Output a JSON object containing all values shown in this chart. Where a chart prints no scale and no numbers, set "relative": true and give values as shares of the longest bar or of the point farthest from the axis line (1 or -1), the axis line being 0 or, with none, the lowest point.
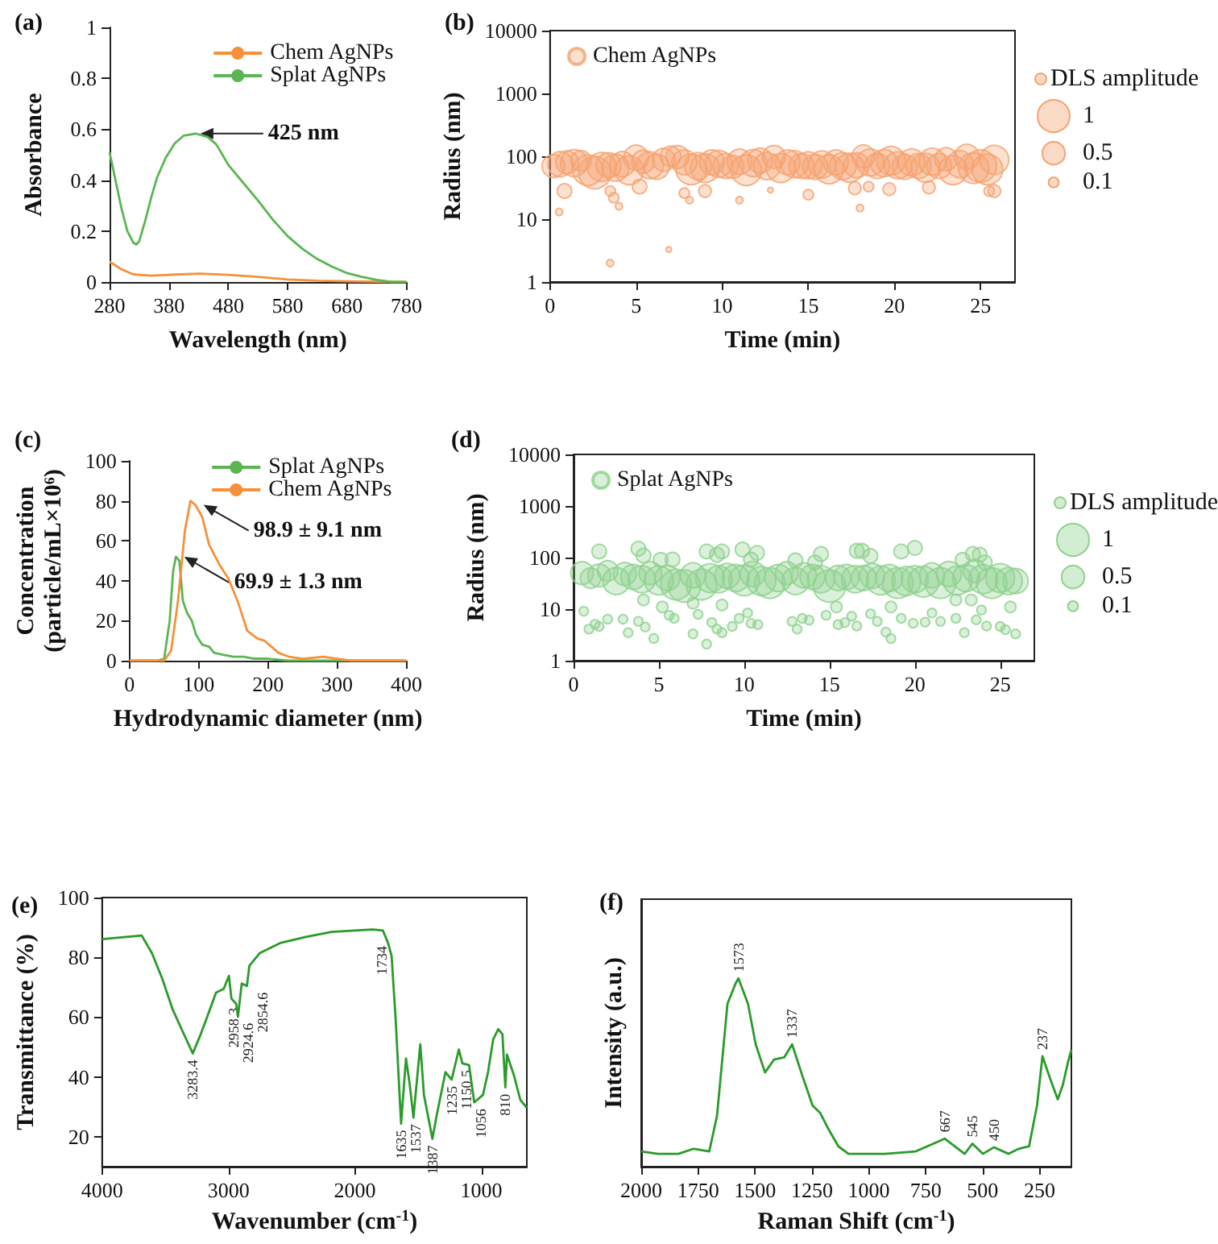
{
  "chart_data": [
    {
      "type": "line",
      "title": "(a)",
      "xlabel": "Wavelength (nm)",
      "ylabel": "Absorbance",
      "xlim": [
        280,
        780
      ],
      "xticks": [
        280,
        380,
        480,
        580,
        680,
        780
      ],
      "ylim": [
        0,
        1
      ],
      "yticks": [
        0,
        0.2,
        0.4,
        0.6,
        0.8,
        1
      ],
      "legend": "top right",
      "annotations": [
        {
          "text": "425 nm",
          "x": 425,
          "y": 0.583
        }
      ],
      "series": [
        {
          "name": "Chem AgNPs",
          "color": "#f7903a",
          "x": [
            280,
            300,
            320,
            350,
            400,
            430,
            480,
            530,
            580,
            630,
            680,
            730,
            780
          ],
          "values": [
            0.08,
            0.05,
            0.03,
            0.025,
            0.03,
            0.033,
            0.028,
            0.02,
            0.01,
            0.005,
            0.003,
            0.001,
            0
          ]
        },
        {
          "name": "Splat AgNPs",
          "color": "#5ab552",
          "x": [
            280,
            290,
            300,
            310,
            320,
            325,
            330,
            340,
            350,
            360,
            375,
            390,
            405,
            425,
            445,
            460,
            480,
            505,
            530,
            555,
            580,
            605,
            630,
            655,
            680,
            705,
            730,
            755,
            780
          ],
          "values": [
            0.51,
            0.4,
            0.29,
            0.2,
            0.155,
            0.147,
            0.16,
            0.24,
            0.33,
            0.41,
            0.49,
            0.545,
            0.575,
            0.583,
            0.57,
            0.54,
            0.46,
            0.39,
            0.32,
            0.245,
            0.18,
            0.13,
            0.09,
            0.06,
            0.035,
            0.02,
            0.008,
            0,
            0
          ]
        }
      ]
    },
    {
      "type": "bubble",
      "title": "(b)",
      "xlabel": "Time (min)",
      "ylabel": "Radius (nm)",
      "log": true,
      "xlim": [
        0,
        27
      ],
      "xticks": [
        0,
        5,
        10,
        15,
        20,
        25
      ],
      "ylim": [
        1,
        10000
      ],
      "yticks": [
        1,
        10,
        100,
        1000,
        10000
      ],
      "legend": "top left",
      "legend_title": "DLS amplitude",
      "size_legend": [
        1,
        0.5,
        0.1
      ],
      "series": [
        {
          "name": "Chem AgNPs",
          "color": "#f5a370",
          "x": [
            0.2,
            0.6,
            1.0,
            1.4,
            1.8,
            2.2,
            2.6,
            3.0,
            3.4,
            3.8,
            4.2,
            4.6,
            5.0,
            5.4,
            5.8,
            6.2,
            6.6,
            7.0,
            7.4,
            7.8,
            8.2,
            8.6,
            9.0,
            9.4,
            9.8,
            10.2,
            10.6,
            11.0,
            11.4,
            11.8,
            12.2,
            12.6,
            13.0,
            13.4,
            13.8,
            14.2,
            14.6,
            15.0,
            15.4,
            15.8,
            16.2,
            16.6,
            17.0,
            17.4,
            17.8,
            18.2,
            18.6,
            19.0,
            19.4,
            19.8,
            20.2,
            20.6,
            21.0,
            21.4,
            21.8,
            22.2,
            22.6,
            23.0,
            23.4,
            23.8,
            24.2,
            24.6,
            25.0,
            25.4,
            25.8,
            0.84,
            0.53,
            3.49,
            3.5,
            3.7,
            4.0,
            5.2,
            6.9,
            7.8,
            8.1,
            9.0,
            11.0,
            12.8,
            15.0,
            17.7,
            18.0,
            18.5,
            19.7,
            22.0,
            25.5,
            25.8
          ],
          "values": [
            70,
            75,
            80,
            78,
            85,
            60,
            55,
            68,
            72,
            66,
            75,
            60,
            95,
            82,
            72,
            68,
            88,
            100,
            98,
            80,
            62,
            70,
            65,
            80,
            76,
            70,
            68,
            82,
            60,
            78,
            85,
            70,
            98,
            65,
            80,
            75,
            70,
            72,
            68,
            74,
            62,
            80,
            70,
            66,
            72,
            100,
            80,
            70,
            78,
            85,
            72,
            68,
            80,
            70,
            66,
            82,
            70,
            90,
            60,
            75,
            98,
            65,
            70,
            62,
            88,
            28,
            13,
            2,
            28,
            22,
            16,
            33,
            3.3,
            26,
            20,
            28,
            20,
            29,
            24.5,
            31,
            15,
            33,
            30,
            32,
            28,
            28
          ],
          "sizes": [
            0.5,
            0.6,
            0.5,
            0.7,
            0.4,
            0.9,
            1,
            0.8,
            0.6,
            0.7,
            0.6,
            0.8,
            0.6,
            0.5,
            0.7,
            0.6,
            0.5,
            0.4,
            0.5,
            0.6,
            0.9,
            0.7,
            0.8,
            0.6,
            0.7,
            0.6,
            0.5,
            0.6,
            0.9,
            0.7,
            0.6,
            0.7,
            0.5,
            0.8,
            0.6,
            0.7,
            0.6,
            0.7,
            0.6,
            0.7,
            0.8,
            0.6,
            0.7,
            0.8,
            0.6,
            0.5,
            0.7,
            0.6,
            0.7,
            0.8,
            0.7,
            0.6,
            0.7,
            0.6,
            0.8,
            0.7,
            0.6,
            0.5,
            0.8,
            0.7,
            0.6,
            0.9,
            1,
            0.9,
            0.8,
            0.2,
            0.05,
            0.05,
            0.1,
            0.1,
            0.05,
            0.2,
            0.03,
            0.1,
            0.05,
            0.15,
            0.05,
            0.03,
            0.1,
            0.15,
            0.05,
            0.1,
            0.15,
            0.15,
            0.1,
            0.15
          ]
        }
      ]
    },
    {
      "type": "line",
      "title": "(c)",
      "xlabel": "Hydrodynamic diameter (nm)",
      "ylabel": "Concentration\n(particle/mL×10⁶)",
      "xlim": [
        0,
        400
      ],
      "xticks": [
        0,
        100,
        200,
        300,
        400
      ],
      "ylim": [
        0,
        100
      ],
      "yticks": [
        0,
        20,
        40,
        60,
        80,
        100
      ],
      "legend": "top right",
      "annotations": [
        {
          "text": "98.9 ± 9.1 nm",
          "x": 100,
          "y": 78
        },
        {
          "text": "69.9 ± 1.3 nm",
          "x": 72,
          "y": 52
        }
      ],
      "series": [
        {
          "name": "Splat AgNPs",
          "color": "#5ab552",
          "x": [
            0,
            40,
            50,
            58,
            63,
            67,
            72,
            77,
            83,
            90,
            96,
            105,
            115,
            122,
            135,
            150,
            165,
            180,
            200,
            230,
            260,
            300,
            400
          ],
          "values": [
            0,
            0,
            1,
            20,
            45,
            52,
            50,
            30,
            24,
            20,
            13,
            8,
            7,
            4,
            3,
            2,
            2,
            1,
            1,
            0,
            0,
            0,
            0
          ]
        },
        {
          "name": "Chem AgNPs",
          "color": "#f7903a",
          "x": [
            0,
            50,
            60,
            70,
            80,
            88,
            95,
            105,
            115,
            130,
            143,
            157,
            170,
            185,
            195,
            205,
            215,
            230,
            250,
            280,
            300,
            320,
            350,
            400
          ],
          "values": [
            0,
            0,
            5,
            30,
            65,
            80,
            78,
            72,
            58,
            48,
            41,
            29,
            15,
            11,
            10,
            7,
            4,
            2,
            1,
            2,
            1,
            0,
            0,
            0
          ]
        }
      ]
    },
    {
      "type": "bubble",
      "title": "(d)",
      "xlabel": "Time (min)",
      "ylabel": "Radius (nm)",
      "log": true,
      "xlim": [
        0,
        27
      ],
      "xticks": [
        0,
        5,
        10,
        15,
        20,
        25
      ],
      "ylim": [
        1,
        10000
      ],
      "yticks": [
        1,
        10,
        100,
        1000,
        10000
      ],
      "legend": "top left",
      "legend_title": "DLS amplitude",
      "size_legend": [
        1,
        0.5,
        0.1
      ],
      "series": [
        {
          "name": "Splat AgNPs",
          "color": "#8fd18f",
          "x": [
            0.5,
            1.0,
            1.5,
            2.0,
            2.5,
            3.0,
            3.5,
            4.0,
            4.5,
            5.0,
            5.5,
            6.0,
            6.5,
            7.0,
            7.5,
            8.0,
            8.5,
            9.0,
            9.5,
            10.0,
            10.5,
            11.0,
            11.5,
            12.0,
            12.5,
            13.0,
            13.5,
            14.0,
            14.5,
            15.0,
            15.5,
            16.0,
            16.5,
            17.0,
            17.5,
            18.0,
            18.5,
            19.0,
            19.5,
            20.0,
            20.5,
            21.0,
            21.5,
            22.0,
            22.5,
            23.0,
            23.5,
            24.0,
            24.5,
            25.0,
            25.5,
            25.9,
            1.5,
            3.8,
            4.1,
            5.1,
            5.8,
            7.8,
            8.4,
            8.7,
            9.9,
            10.75,
            10.4,
            13.0,
            14.5,
            14.15,
            16.6,
            16.9,
            17.4,
            19.2,
            20.0,
            22.8,
            23.4,
            23.8,
            24.1,
            0.6,
            0.9,
            1.26,
            1.5,
            2.0,
            2.9,
            3.2,
            3.8,
            4.1,
            4.2,
            4.7,
            5.2,
            5.6,
            5.9,
            7.0,
            7.0,
            7.3,
            7.8,
            8.1,
            8.4,
            8.7,
            8.7,
            9.3,
            9.7,
            10.2,
            10.4,
            10.8,
            12.8,
            13.1,
            13.4,
            13.8,
            14.8,
            15.4,
            15.5,
            15.9,
            16.3,
            16.6,
            17.4,
            17.8,
            18.3,
            18.6,
            18.6,
            19.2,
            19.9,
            20.6,
            21.0,
            21.5,
            22.4,
            22.4,
            22.9,
            23.3,
            23.6,
            23.9,
            24.2,
            25.0,
            25.3,
            25.6,
            25.9
          ],
          "values": [
            50,
            40,
            45,
            55,
            35,
            48,
            42,
            38,
            50,
            36,
            40,
            30,
            28,
            45,
            30,
            40,
            38,
            44,
            40,
            36,
            48,
            35,
            32,
            40,
            50,
            35,
            45,
            42,
            38,
            28,
            40,
            42,
            38,
            40,
            44,
            36,
            40,
            32,
            35,
            38,
            34,
            45,
            32,
            48,
            36,
            40,
            55,
            38,
            32,
            40,
            35,
            35,
            131,
            148,
            109,
            90,
            91,
            131,
            113,
            131,
            143,
            123,
            91,
            88,
            117,
            80,
            135,
            135,
            107,
            131,
            154,
            90,
            117,
            113,
            80,
            9.1,
            4.1,
            5.1,
            4.6,
            6.4,
            6.4,
            3.5,
            5.8,
            15,
            4.5,
            2.7,
            11,
            7.6,
            6.6,
            13,
            3.3,
            7.9,
            2.1,
            5.5,
            4.1,
            12,
            3.5,
            4.6,
            6.6,
            8.4,
            5.3,
            5.0,
            5.8,
            4.1,
            6.6,
            6.1,
            7.6,
            11,
            5.0,
            5.5,
            7.3,
            4.7,
            8.1,
            5.8,
            3.6,
            2.7,
            11,
            6.6,
            5.3,
            5.6,
            8.4,
            5.8,
            6.6,
            15,
            3.5,
            15,
            6.2,
            9.6,
            4.7,
            4.6,
            4.0,
            11,
            3.3
          ],
          "sizes": [
            0.5,
            0.4,
            0.5,
            0.4,
            0.7,
            0.5,
            0.6,
            0.7,
            0.5,
            0.8,
            0.6,
            0.9,
            1,
            0.6,
            0.9,
            0.8,
            0.7,
            0.6,
            0.7,
            0.9,
            0.6,
            0.8,
            0.9,
            0.7,
            0.5,
            0.7,
            0.6,
            0.6,
            0.7,
            1,
            0.6,
            0.6,
            0.7,
            0.6,
            0.6,
            0.8,
            0.7,
            0.9,
            0.8,
            0.7,
            0.9,
            0.6,
            0.9,
            0.6,
            0.8,
            0.7,
            0.5,
            0.8,
            0.9,
            0.8,
            0.7,
            0.6,
            0.2,
            0.2,
            0.2,
            0.2,
            0.2,
            0.2,
            0.2,
            0.2,
            0.2,
            0.2,
            0.2,
            0.2,
            0.2,
            0.2,
            0.2,
            0.2,
            0.2,
            0.2,
            0.2,
            0.2,
            0.2,
            0.2,
            0.2,
            0.08,
            0.08,
            0.08,
            0.08,
            0.08,
            0.08,
            0.08,
            0.08,
            0.12,
            0.08,
            0.08,
            0.12,
            0.08,
            0.08,
            0.12,
            0.08,
            0.08,
            0.08,
            0.08,
            0.08,
            0.12,
            0.08,
            0.08,
            0.08,
            0.08,
            0.08,
            0.08,
            0.08,
            0.08,
            0.08,
            0.08,
            0.08,
            0.12,
            0.08,
            0.08,
            0.08,
            0.08,
            0.08,
            0.08,
            0.08,
            0.08,
            0.12,
            0.08,
            0.08,
            0.08,
            0.08,
            0.08,
            0.08,
            0.12,
            0.08,
            0.12,
            0.08,
            0.08,
            0.08,
            0.08,
            0.08,
            0.12,
            0.08
          ]
        }
      ]
    },
    {
      "type": "line",
      "title": "(e)",
      "xlabel": "Wavenumber (cm$^{-1}$)",
      "ylabel": "Transmittance (%)",
      "xlim": [
        4000,
        640
      ],
      "xticks": [
        4000,
        3000,
        2000,
        1000
      ],
      "ylim": [
        10,
        100
      ],
      "yticks": [
        20,
        40,
        60,
        80,
        100
      ],
      "annotations": [
        {
          "text": "3283.4",
          "x": 3283,
          "y": 47.9
        },
        {
          "text": "2958.3",
          "x": 2958,
          "y": 65.3
        },
        {
          "text": "2924.6",
          "x": 2925,
          "y": 60.2
        },
        {
          "text": "2854.6",
          "x": 2855,
          "y": 70.4
        },
        {
          "text": "1734",
          "x": 1790,
          "y": 86
        },
        {
          "text": "1635",
          "x": 1635,
          "y": 24.4
        },
        {
          "text": "1537",
          "x": 1537,
          "y": 26.4
        },
        {
          "text": "1387",
          "x": 1387,
          "y": 19.3
        },
        {
          "text": "1235",
          "x": 1235,
          "y": 39.1
        },
        {
          "text": "1150.5",
          "x": 1150,
          "y": 44.5
        },
        {
          "text": "1056",
          "x": 1056,
          "y": 31.5
        },
        {
          "text": "810",
          "x": 810,
          "y": 36.5
        }
      ],
      "series": [
        {
          "color": "#2a9a2a",
          "x": [
            4000,
            3687,
            3606,
            3525,
            3444,
            3363,
            3283,
            3220,
            3160,
            3099,
            3038,
            2997,
            2977,
            2958,
            2940,
            2925,
            2896,
            2855,
            2835,
            2754,
            2591,
            2388,
            2185,
            1860,
            1779,
            1738,
            1710,
            1678,
            1635,
            1596,
            1568,
            1537,
            1483,
            1454,
            1387,
            1353,
            1284,
            1235,
            1178,
            1150,
            1097,
            1056,
            987,
            947,
            906,
            866,
            833,
            810,
            797,
            744,
            691,
            642
          ],
          "values": [
            86.1,
            87.3,
            81.4,
            72.9,
            62.8,
            55.2,
            47.9,
            54.3,
            61.1,
            68.2,
            69.5,
            73.8,
            66.2,
            65.3,
            64.5,
            60.2,
            71.2,
            70.4,
            77.2,
            81.4,
            84.8,
            86.8,
            88.5,
            89.3,
            89,
            84.8,
            80.5,
            59.4,
            24.4,
            46.2,
            38,
            26.4,
            50.9,
            34.0,
            19.3,
            27.2,
            41.6,
            39.1,
            49.2,
            44.5,
            44,
            31.5,
            34.0,
            41.6,
            52.6,
            56.0,
            54.3,
            36.5,
            47.5,
            40.8,
            32.3,
            29.8
          ]
        }
      ]
    },
    {
      "type": "line",
      "title": "(f)",
      "xlabel": "Raman Shift (cm$^{-1}$)",
      "ylabel": "Intensity (a.u.)",
      "relative": true,
      "xlim": [
        2000,
        110
      ],
      "xticks": [
        2000,
        1750,
        1500,
        1250,
        1000,
        750,
        500,
        250
      ],
      "annotations": [
        {
          "text": "1573",
          "x": 1573,
          "y": 1
        },
        {
          "text": "1337",
          "x": 1337,
          "y": 0.649
        },
        {
          "text": "667",
          "x": 667,
          "y": 0.149
        },
        {
          "text": "545",
          "x": 545,
          "y": 0.122
        },
        {
          "text": "450",
          "x": 450,
          "y": 0.103
        },
        {
          "text": "237",
          "x": 237,
          "y": 0.586
        }
      ],
      "series": [
        {
          "color": "#2a9a2a",
          "x": [
            2000,
            1927,
            1837,
            1769,
            1701,
            1667,
            1621,
            1587,
            1573,
            1531,
            1497,
            1456,
            1417,
            1372,
            1337,
            1293,
            1247,
            1213,
            1179,
            1134,
            1089,
            930,
            794,
            692,
            667,
            579,
            545,
            499,
            450,
            386,
            341,
            296,
            261,
            237,
            205,
            170,
            148,
            125,
            110
          ],
          "values": [
            0.081,
            0.068,
            0.068,
            0.095,
            0.081,
            0.27,
            0.865,
            0.968,
            1,
            0.865,
            0.649,
            0.5,
            0.568,
            0.58,
            0.649,
            0.486,
            0.324,
            0.284,
            0.203,
            0.108,
            0.068,
            0.068,
            0.081,
            0.135,
            0.149,
            0.068,
            0.122,
            0.068,
            0.103,
            0.068,
            0.095,
            0.108,
            0.324,
            0.586,
            0.473,
            0.357,
            0.432,
            0.554,
            0.62
          ]
        }
      ]
    }
  ]
}
